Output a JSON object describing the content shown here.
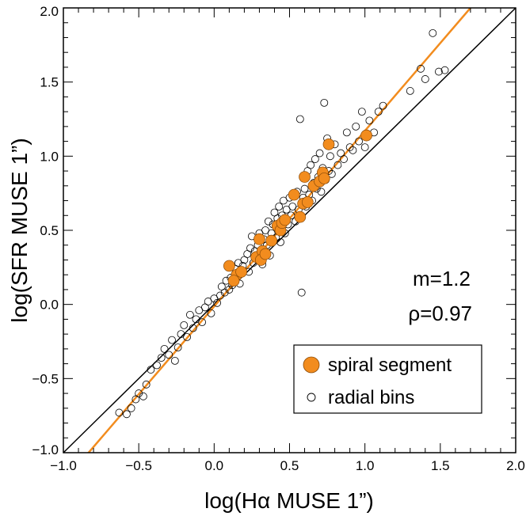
{
  "chart_data": {
    "type": "scatter",
    "title": "",
    "xlabel": "log(Hα MUSE 1”)",
    "ylabel": "log(SFR MUSE 1”)",
    "xlim": [
      -1.0,
      2.0
    ],
    "ylim": [
      -1.0,
      2.0
    ],
    "x_ticks": [
      "−1.0",
      "−0.5",
      "0.0",
      "0.5",
      "1.0",
      "1.5",
      "2.0"
    ],
    "y_ticks": [
      "−1.0",
      "−0.5",
      "0.0",
      "0.5",
      "1.0",
      "1.5",
      "2.0"
    ],
    "x_tick_values": [
      -1.0,
      -0.5,
      0.0,
      0.5,
      1.0,
      1.5,
      2.0
    ],
    "y_tick_values": [
      -1.0,
      -0.5,
      0.0,
      0.5,
      1.0,
      1.5,
      2.0
    ],
    "grid": false,
    "legend_position": "bottom-right",
    "annotations": [
      "m=1.2",
      "ρ=0.97"
    ],
    "colors": {
      "spiral": "#f28c1e",
      "fit_line": "#f28c1e",
      "one_to_one": "#000000",
      "radial": "#000000"
    },
    "lines": [
      {
        "kind": "one-to-one",
        "x": [
          -1.0,
          2.0
        ],
        "y": [
          -1.0,
          2.0
        ]
      },
      {
        "kind": "fit",
        "x": [
          -0.85,
          1.7
        ],
        "y": [
          -1.02,
          2.0
        ]
      }
    ],
    "series": [
      {
        "name": "spiral segment",
        "marker": "filled-circle",
        "points": [
          [
            0.1,
            0.26
          ],
          [
            0.15,
            0.2
          ],
          [
            0.13,
            0.16
          ],
          [
            0.18,
            0.22
          ],
          [
            0.28,
            0.32
          ],
          [
            0.3,
            0.44
          ],
          [
            0.32,
            0.36
          ],
          [
            0.31,
            0.3
          ],
          [
            0.34,
            0.34
          ],
          [
            0.38,
            0.43
          ],
          [
            0.42,
            0.53
          ],
          [
            0.44,
            0.5
          ],
          [
            0.45,
            0.55
          ],
          [
            0.47,
            0.57
          ],
          [
            0.53,
            0.74
          ],
          [
            0.57,
            0.59
          ],
          [
            0.59,
            0.68
          ],
          [
            0.62,
            0.69
          ],
          [
            0.6,
            0.86
          ],
          [
            0.66,
            0.8
          ],
          [
            0.7,
            0.83
          ],
          [
            0.72,
            0.89
          ],
          [
            0.73,
            0.85
          ],
          [
            0.76,
            1.08
          ],
          [
            1.01,
            1.14
          ]
        ]
      },
      {
        "name": "radial bins",
        "marker": "open-circle",
        "points": [
          [
            -0.63,
            -0.73
          ],
          [
            -0.58,
            -0.74
          ],
          [
            -0.55,
            -0.7
          ],
          [
            -0.52,
            -0.64
          ],
          [
            -0.5,
            -0.6
          ],
          [
            -0.47,
            -0.62
          ],
          [
            -0.45,
            -0.54
          ],
          [
            -0.42,
            -0.44
          ],
          [
            -0.38,
            -0.41
          ],
          [
            -0.35,
            -0.36
          ],
          [
            -0.33,
            -0.3
          ],
          [
            -0.3,
            -0.34
          ],
          [
            -0.28,
            -0.24
          ],
          [
            -0.26,
            -0.38
          ],
          [
            -0.24,
            -0.29
          ],
          [
            -0.22,
            -0.2
          ],
          [
            -0.2,
            -0.14
          ],
          [
            -0.18,
            -0.22
          ],
          [
            -0.16,
            -0.07
          ],
          [
            -0.14,
            -0.16
          ],
          [
            -0.12,
            -0.1
          ],
          [
            -0.1,
            -0.04
          ],
          [
            -0.08,
            -0.12
          ],
          [
            -0.06,
            -0.02
          ],
          [
            -0.04,
            0.02
          ],
          [
            -0.02,
            -0.06
          ],
          [
            0.0,
            0.04
          ],
          [
            0.02,
            0.01
          ],
          [
            0.04,
            0.06
          ],
          [
            0.05,
            0.12
          ],
          [
            0.07,
            0.08
          ],
          [
            0.08,
            0.16
          ],
          [
            0.1,
            0.1
          ],
          [
            0.11,
            0.18
          ],
          [
            0.12,
            0.13
          ],
          [
            0.14,
            0.24
          ],
          [
            0.16,
            0.28
          ],
          [
            0.17,
            0.14
          ],
          [
            0.19,
            0.26
          ],
          [
            0.2,
            0.3
          ],
          [
            0.22,
            0.34
          ],
          [
            0.23,
            0.22
          ],
          [
            0.24,
            0.38
          ],
          [
            0.25,
            0.46
          ],
          [
            0.26,
            0.28
          ],
          [
            0.27,
            0.36
          ],
          [
            0.29,
            0.4
          ],
          [
            0.3,
            0.48
          ],
          [
            0.32,
            0.27
          ],
          [
            0.33,
            0.44
          ],
          [
            0.34,
            0.5
          ],
          [
            0.35,
            0.4
          ],
          [
            0.36,
            0.56
          ],
          [
            0.37,
            0.33
          ],
          [
            0.38,
            0.48
          ],
          [
            0.39,
            0.54
          ],
          [
            0.4,
            0.62
          ],
          [
            0.41,
            0.45
          ],
          [
            0.42,
            0.58
          ],
          [
            0.43,
            0.66
          ],
          [
            0.44,
            0.42
          ],
          [
            0.45,
            0.6
          ],
          [
            0.46,
            0.7
          ],
          [
            0.47,
            0.48
          ],
          [
            0.48,
            0.64
          ],
          [
            0.49,
            0.54
          ],
          [
            0.5,
            0.72
          ],
          [
            0.51,
            0.6
          ],
          [
            0.52,
            0.66
          ],
          [
            0.54,
            0.56
          ],
          [
            0.55,
            0.76
          ],
          [
            0.56,
            0.64
          ],
          [
            0.57,
            1.25
          ],
          [
            0.58,
            0.08
          ],
          [
            0.59,
            0.72
          ],
          [
            0.6,
            0.78
          ],
          [
            0.61,
            0.66
          ],
          [
            0.62,
            0.9
          ],
          [
            0.63,
            0.74
          ],
          [
            0.64,
            0.94
          ],
          [
            0.65,
            0.7
          ],
          [
            0.66,
            0.82
          ],
          [
            0.67,
            0.98
          ],
          [
            0.68,
            0.78
          ],
          [
            0.69,
            0.86
          ],
          [
            0.7,
            1.02
          ],
          [
            0.71,
            0.76
          ],
          [
            0.72,
            0.92
          ],
          [
            0.73,
            1.36
          ],
          [
            0.74,
            0.84
          ],
          [
            0.75,
            1.12
          ],
          [
            0.76,
            0.9
          ],
          [
            0.77,
            1.0
          ],
          [
            0.78,
            0.88
          ],
          [
            0.8,
            1.08
          ],
          [
            0.82,
            0.94
          ],
          [
            0.84,
            1.02
          ],
          [
            0.86,
            0.98
          ],
          [
            0.88,
            1.16
          ],
          [
            0.9,
            1.06
          ],
          [
            0.92,
            1.04
          ],
          [
            0.94,
            1.2
          ],
          [
            0.96,
            1.1
          ],
          [
            0.98,
            1.3
          ],
          [
            1.0,
            1.06
          ],
          [
            1.03,
            1.24
          ],
          [
            1.06,
            1.16
          ],
          [
            1.09,
            1.3
          ],
          [
            1.12,
            1.34
          ],
          [
            1.3,
            1.44
          ],
          [
            1.37,
            1.59
          ],
          [
            1.4,
            1.52
          ],
          [
            1.45,
            1.83
          ],
          [
            1.49,
            1.57
          ],
          [
            1.53,
            1.58
          ]
        ]
      }
    ]
  }
}
